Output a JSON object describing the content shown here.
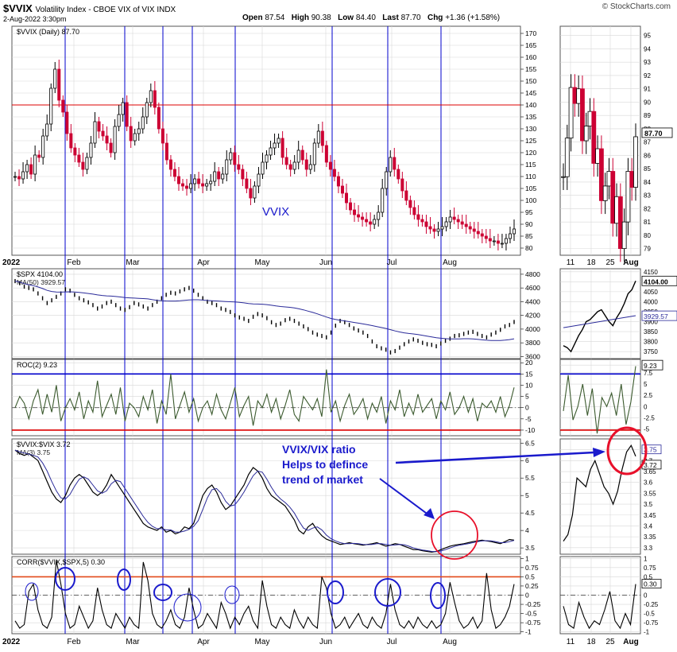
{
  "header": {
    "symbol": "$VVIX",
    "name": "Volatility Index - CBOE VIX of VIX INDX",
    "date": "2-Aug-2022 3:30pm",
    "open_label": "Open",
    "open": "87.54",
    "high_label": "High",
    "high": "90.38",
    "low_label": "Low",
    "low": "84.40",
    "last_label": "Last",
    "last": "87.70",
    "chg_label": "Chg",
    "chg": "+1.36 (+1.58%)",
    "brand": "© StockCharts.com"
  },
  "colors": {
    "grid": "#d8d8d8",
    "vline": "#0000cc",
    "hline": "#dd0000",
    "up": "#000000",
    "down": "#cc0033",
    "ma": "#2a2a99",
    "roc": "#3b5a2e",
    "ann": "#1a1acc",
    "circle_red": "#e8102a"
  },
  "x_axis": {
    "year_label": "2022",
    "months": [
      "Feb",
      "Mar",
      "Apr",
      "May",
      "Jun",
      "Jul",
      "Aug"
    ],
    "side_days": [
      "11",
      "18",
      "25",
      "Aug"
    ]
  },
  "annotations": {
    "vvix_label": "VVIX",
    "ratio_line1": "VVIX/VIX ratio",
    "ratio_line2": "Helps to defince",
    "ratio_line3": "trend of market"
  },
  "chart_data": [
    {
      "type": "candlestick",
      "panel": "main",
      "legend": "$VVIX (Daily) 87.70",
      "y_ticks": [
        80,
        85,
        90,
        95,
        100,
        105,
        110,
        115,
        120,
        125,
        130,
        135,
        140,
        145,
        150,
        155,
        160,
        165,
        170
      ],
      "ylim": [
        77,
        173
      ],
      "hline": 140,
      "last_value": "87.70",
      "side_ticks": [
        79,
        80,
        81,
        82,
        83,
        84,
        85,
        86,
        87,
        88,
        89,
        90,
        91,
        92,
        93,
        94,
        95
      ],
      "side_ylim": [
        78.5,
        95.7
      ],
      "values": [
        110,
        109,
        112,
        115,
        111,
        119,
        118,
        127,
        132,
        147,
        155,
        142,
        137,
        128,
        122,
        119,
        116,
        113,
        118,
        124,
        133,
        129,
        127,
        124,
        120,
        131,
        136,
        141,
        131,
        125,
        128,
        130,
        135,
        141,
        146,
        139,
        130,
        124,
        117,
        113,
        110,
        107,
        106,
        105,
        107,
        109,
        107,
        106,
        107,
        108,
        112,
        109,
        111,
        117,
        120,
        115,
        113,
        109,
        105,
        101,
        106,
        111,
        116,
        119,
        122,
        124,
        126,
        118,
        115,
        113,
        116,
        121,
        117,
        113,
        115,
        124,
        129,
        123,
        116,
        113,
        110,
        106,
        103,
        99,
        96,
        94,
        93,
        92,
        91,
        90,
        92,
        95,
        105,
        112,
        118,
        113,
        109,
        104,
        100,
        97,
        94,
        92,
        91,
        89,
        88,
        87,
        88,
        89,
        91,
        93,
        92,
        91,
        90,
        89,
        88,
        87,
        86,
        85,
        84,
        83,
        83,
        82,
        82,
        84,
        86,
        88
      ]
    },
    {
      "type": "line",
      "panel": "spx",
      "legend": "$SPX 4104.00",
      "ma_legend": "MA(50) 3929.57",
      "y_ticks": [
        3600,
        3800,
        4000,
        4200,
        4400,
        4600,
        4800
      ],
      "ylim": [
        3570,
        4880
      ],
      "last_value": "4104.00",
      "ma_last": "3929.57",
      "side_ticks": [
        3750,
        3800,
        3850,
        3900,
        3950,
        4000,
        4050,
        4100,
        4150
      ],
      "side_ylim": [
        3715,
        4165
      ],
      "values": [
        4700,
        4670,
        4620,
        4600,
        4580,
        4520,
        4450,
        4380,
        4420,
        4470,
        4520,
        4580,
        4560,
        4500,
        4450,
        4420,
        4390,
        4350,
        4300,
        4330,
        4380,
        4400,
        4350,
        4300,
        4280,
        4320,
        4380,
        4360,
        4330,
        4300,
        4350,
        4400,
        4450,
        4500,
        4530,
        4520,
        4550,
        4580,
        4600,
        4560,
        4500,
        4450,
        4400,
        4380,
        4350,
        4300,
        4280,
        4250,
        4200,
        4170,
        4150,
        4120,
        4180,
        4220,
        4200,
        4160,
        4100,
        4060,
        4080,
        4130,
        4150,
        4120,
        4080,
        4040,
        4000,
        3950,
        3920,
        3900,
        3880,
        3950,
        4050,
        4120,
        4100,
        4060,
        4010,
        3980,
        3950,
        3900,
        3820,
        3750,
        3720,
        3700,
        3660,
        3680,
        3730,
        3780,
        3820,
        3850,
        3830,
        3800,
        3780,
        3770,
        3750,
        3790,
        3830,
        3860,
        3900,
        3910,
        3930,
        3950,
        3960,
        3930,
        3900,
        3880,
        3920,
        3950,
        3990,
        4040,
        4060,
        4104
      ]
    },
    {
      "type": "line",
      "panel": "roc",
      "legend": "ROC(2) 9.23",
      "y_ticks": [
        -10,
        -5,
        0,
        5,
        10,
        15,
        20
      ],
      "ylim": [
        -12.5,
        21.5
      ],
      "hlines": [
        15,
        -10
      ],
      "last_value": "9.23",
      "side_ticks": [
        -5,
        -2.5,
        0,
        2.5,
        5,
        7.5,
        9.23
      ],
      "side_ylim": [
        -6.5,
        10.5
      ],
      "values": [
        0,
        5,
        2,
        -5,
        3,
        8,
        -3,
        6,
        -2,
        10,
        -6,
        0,
        4,
        -1,
        7,
        -5,
        3,
        -2,
        12,
        -4,
        1,
        6,
        -3,
        9,
        -6,
        2,
        0,
        -4,
        5,
        -1,
        8,
        -7,
        3,
        -3,
        15,
        -5,
        1,
        7,
        -2,
        4,
        -6,
        0,
        3,
        -3,
        6,
        -1,
        -5,
        2,
        9,
        -4,
        1,
        5,
        -8,
        3,
        0,
        6,
        -2,
        4,
        -5,
        1,
        8,
        -3,
        -6,
        5,
        2,
        -1,
        4,
        -4,
        17,
        -2,
        3,
        -6,
        1,
        6,
        -3,
        0,
        4,
        -5,
        2,
        -2,
        5,
        -7,
        3,
        -1,
        8,
        -4,
        2,
        -3,
        6,
        -2,
        1,
        4,
        -5,
        3,
        -1,
        7,
        -3,
        0,
        5,
        -2,
        4,
        -6,
        2,
        0,
        3,
        -2,
        5,
        -4,
        1,
        9
      ]
    },
    {
      "type": "line",
      "panel": "ratio",
      "legend": "$VVIX:$VIX 3.72",
      "ma_legend": "MA(3) 3.75",
      "y_ticks": [
        3.5,
        4.0,
        4.5,
        5.0,
        5.5,
        6.0,
        6.5
      ],
      "ylim": [
        3.32,
        6.62
      ],
      "last_value": "3.72",
      "ma_last": "3.75",
      "side_ticks": [
        3.3,
        3.35,
        3.4,
        3.45,
        3.5,
        3.55,
        3.6,
        3.65,
        3.7,
        3.75
      ],
      "side_ylim": [
        3.27,
        3.8
      ],
      "values": [
        6.3,
        6.2,
        6.15,
        6.2,
        6.1,
        6.0,
        5.7,
        5.4,
        5.1,
        4.9,
        4.8,
        5.0,
        5.3,
        5.5,
        5.6,
        5.5,
        5.3,
        5.1,
        5.0,
        5.1,
        5.3,
        5.6,
        5.4,
        5.2,
        5.0,
        4.8,
        4.6,
        4.4,
        4.2,
        4.1,
        4.05,
        4.0,
        4.1,
        3.95,
        4.0,
        3.9,
        3.95,
        4.1,
        4.05,
        4.2,
        4.6,
        5.0,
        5.2,
        5.3,
        5.1,
        4.8,
        4.6,
        4.7,
        4.9,
        5.1,
        5.3,
        5.6,
        5.8,
        5.7,
        5.5,
        5.2,
        5.0,
        4.9,
        4.8,
        4.7,
        4.5,
        4.3,
        4.0,
        3.9,
        4.1,
        4.2,
        4.0,
        3.85,
        3.75,
        3.7,
        3.65,
        3.6,
        3.62,
        3.65,
        3.62,
        3.6,
        3.58,
        3.6,
        3.62,
        3.65,
        3.6,
        3.55,
        3.58,
        3.62,
        3.6,
        3.55,
        3.5,
        3.45,
        3.45,
        3.42,
        3.4,
        3.38,
        3.4,
        3.45,
        3.5,
        3.55,
        3.58,
        3.6,
        3.62,
        3.65,
        3.68,
        3.7,
        3.72,
        3.7,
        3.68,
        3.65,
        3.62,
        3.68,
        3.74,
        3.72
      ]
    },
    {
      "type": "line",
      "panel": "corr",
      "legend": "CORR($VVIX,$SPX,5) 0.30",
      "y_ticks": [
        -1.0,
        -0.75,
        -0.5,
        -0.25,
        0.0,
        0.25,
        0.5,
        0.75,
        1.0
      ],
      "ylim": [
        -1.05,
        1.05
      ],
      "hline": 0.5,
      "zero_line": 0.0,
      "last_value": "0.30",
      "side_ticks": [
        -1.0,
        -0.75,
        -0.5,
        -0.25,
        0.0,
        0.25,
        0.5,
        0.75,
        1.0
      ],
      "side_ylim": [
        -1.05,
        1.05
      ],
      "values": [
        -0.7,
        -0.9,
        -0.8,
        0.1,
        0.3,
        -0.4,
        -0.8,
        -0.9,
        -0.6,
        0.95,
        0.3,
        -0.5,
        -0.9,
        -0.8,
        -0.3,
        -0.6,
        -0.9,
        -0.7,
        0.2,
        -0.4,
        -0.8,
        -0.9,
        -0.5,
        -0.7,
        -0.9,
        -0.6,
        -0.8,
        -0.9,
        0.9,
        0.4,
        -0.5,
        -0.8,
        -0.9,
        -0.7,
        -0.4,
        -0.8,
        -0.9,
        -0.6,
        0.2,
        -0.4,
        -0.9,
        -0.8,
        -0.5,
        -0.7,
        -0.9,
        -0.2,
        -0.5,
        -0.9,
        -0.6,
        -0.8,
        -0.5,
        -0.3,
        -0.7,
        -0.9,
        0.4,
        -0.3,
        -0.8,
        -0.9,
        -0.6,
        -0.8,
        -0.9,
        -0.4,
        -0.7,
        -0.9,
        -0.6,
        -0.8,
        -0.9,
        0.5,
        0.2,
        -0.5,
        -0.9,
        -0.8,
        -0.6,
        -0.9,
        -0.7,
        -0.5,
        -0.8,
        -0.9,
        -0.6,
        -0.8,
        -0.9,
        -0.5,
        0.3,
        -0.4,
        -0.8,
        -0.9,
        -0.7,
        -0.9,
        -0.6,
        -0.8,
        -0.9,
        -0.7,
        -0.9,
        -0.8,
        -0.5,
        0.35,
        -0.2,
        -0.7,
        -0.9,
        -0.8,
        -0.6,
        -0.9,
        -0.7,
        0.6,
        -0.4,
        -0.9,
        -0.8,
        -0.6,
        -0.3,
        0.3
      ]
    }
  ]
}
